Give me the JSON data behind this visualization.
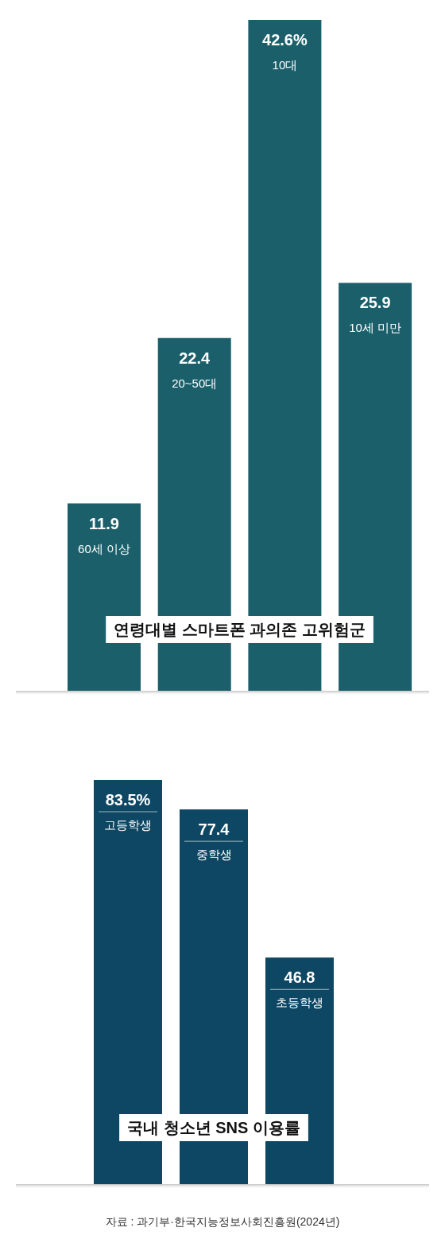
{
  "chart_data": [
    {
      "type": "bar",
      "title": "연령대별 스마트폰 과의존 고위험군",
      "categories": [
        "60세 이상",
        "20~50대",
        "10대",
        "10세 미만"
      ],
      "values": [
        11.9,
        22.4,
        42.6,
        25.9
      ],
      "value_labels": [
        "11.9",
        "22.4",
        "42.6%",
        "25.9"
      ],
      "color": "#1b5f6b"
    },
    {
      "type": "bar",
      "title": "국내 청소년 SNS 이용률",
      "categories": [
        "고등학생",
        "중학생",
        "초등학생"
      ],
      "values": [
        83.5,
        77.4,
        46.8
      ],
      "value_labels": [
        "83.5%",
        "77.4",
        "46.8"
      ],
      "color": "#0e4763",
      "annotations": [
        "자료 : 과기부·한국지능정보사회진흥원(2024년)"
      ]
    }
  ]
}
